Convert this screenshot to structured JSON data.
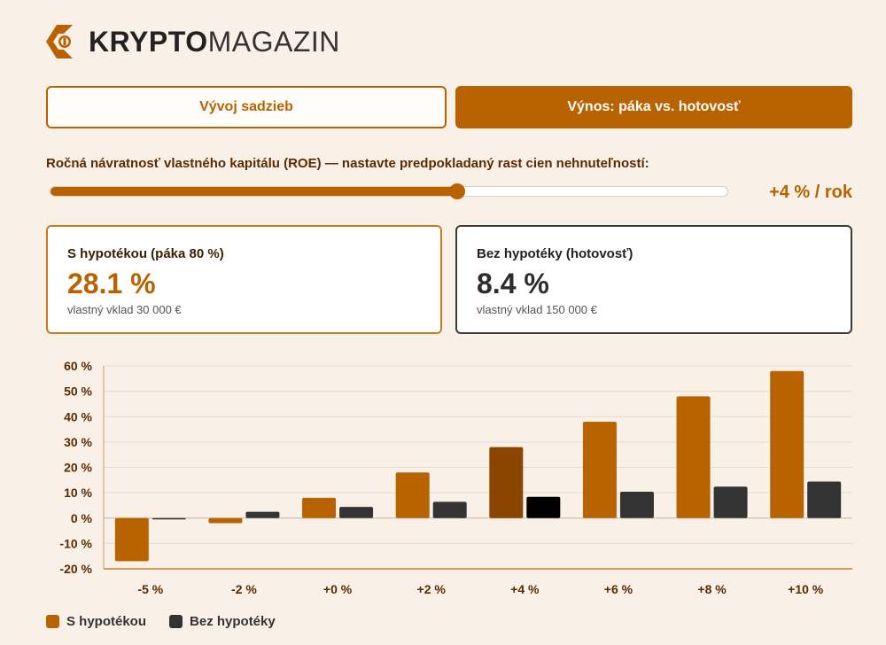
{
  "brand": {
    "strong": "KRYPTO",
    "light": "MAGAZIN",
    "accent": "#b86200"
  },
  "tabs": [
    {
      "label": "Vývoj sadzieb",
      "active": false
    },
    {
      "label": "Výnos: páka vs. hotovosť",
      "active": true
    }
  ],
  "slider": {
    "label": "Ročná návratnosť vlastného kapitálu (ROE) — nastavte predpokladaný rast cien nehnuteľností:",
    "value_text": "+4 % / rok",
    "value": 4,
    "min": -5,
    "max": 10
  },
  "cards": [
    {
      "title": "S hypotékou (páka 80 %)",
      "value": "28.1 %",
      "sub": "vlastný vklad 30 000 €"
    },
    {
      "title": "Bez hypotéky (hotovosť)",
      "value": "8.4 %",
      "sub": "vlastný vklad 150 000 €"
    }
  ],
  "chart_data": {
    "type": "bar",
    "categories": [
      "-5 %",
      "-2 %",
      "+0 %",
      "+2 %",
      "+4 %",
      "+6 %",
      "+8 %",
      "+10 %"
    ],
    "series": [
      {
        "name": "S hypotékou",
        "color": "#b86200",
        "highlight_color": "#8a4600",
        "values": [
          -17,
          -2,
          8,
          18,
          28,
          38,
          48,
          58
        ]
      },
      {
        "name": "Bez hypotéky",
        "color": "#333333",
        "highlight_color": "#000000",
        "values": [
          -0.5,
          2.5,
          4.4,
          6.4,
          8.4,
          10.4,
          12.4,
          14.4
        ]
      }
    ],
    "highlight_index": 4,
    "ylim": [
      -20,
      60
    ],
    "yticks": [
      -20,
      -10,
      0,
      10,
      20,
      30,
      40,
      50,
      60
    ],
    "ytick_labels": [
      "-20 %",
      "-10 %",
      "0 %",
      "10 %",
      "20 %",
      "30 %",
      "40 %",
      "50 %",
      "60 %"
    ],
    "grid": true,
    "legend": "bottom-left"
  }
}
